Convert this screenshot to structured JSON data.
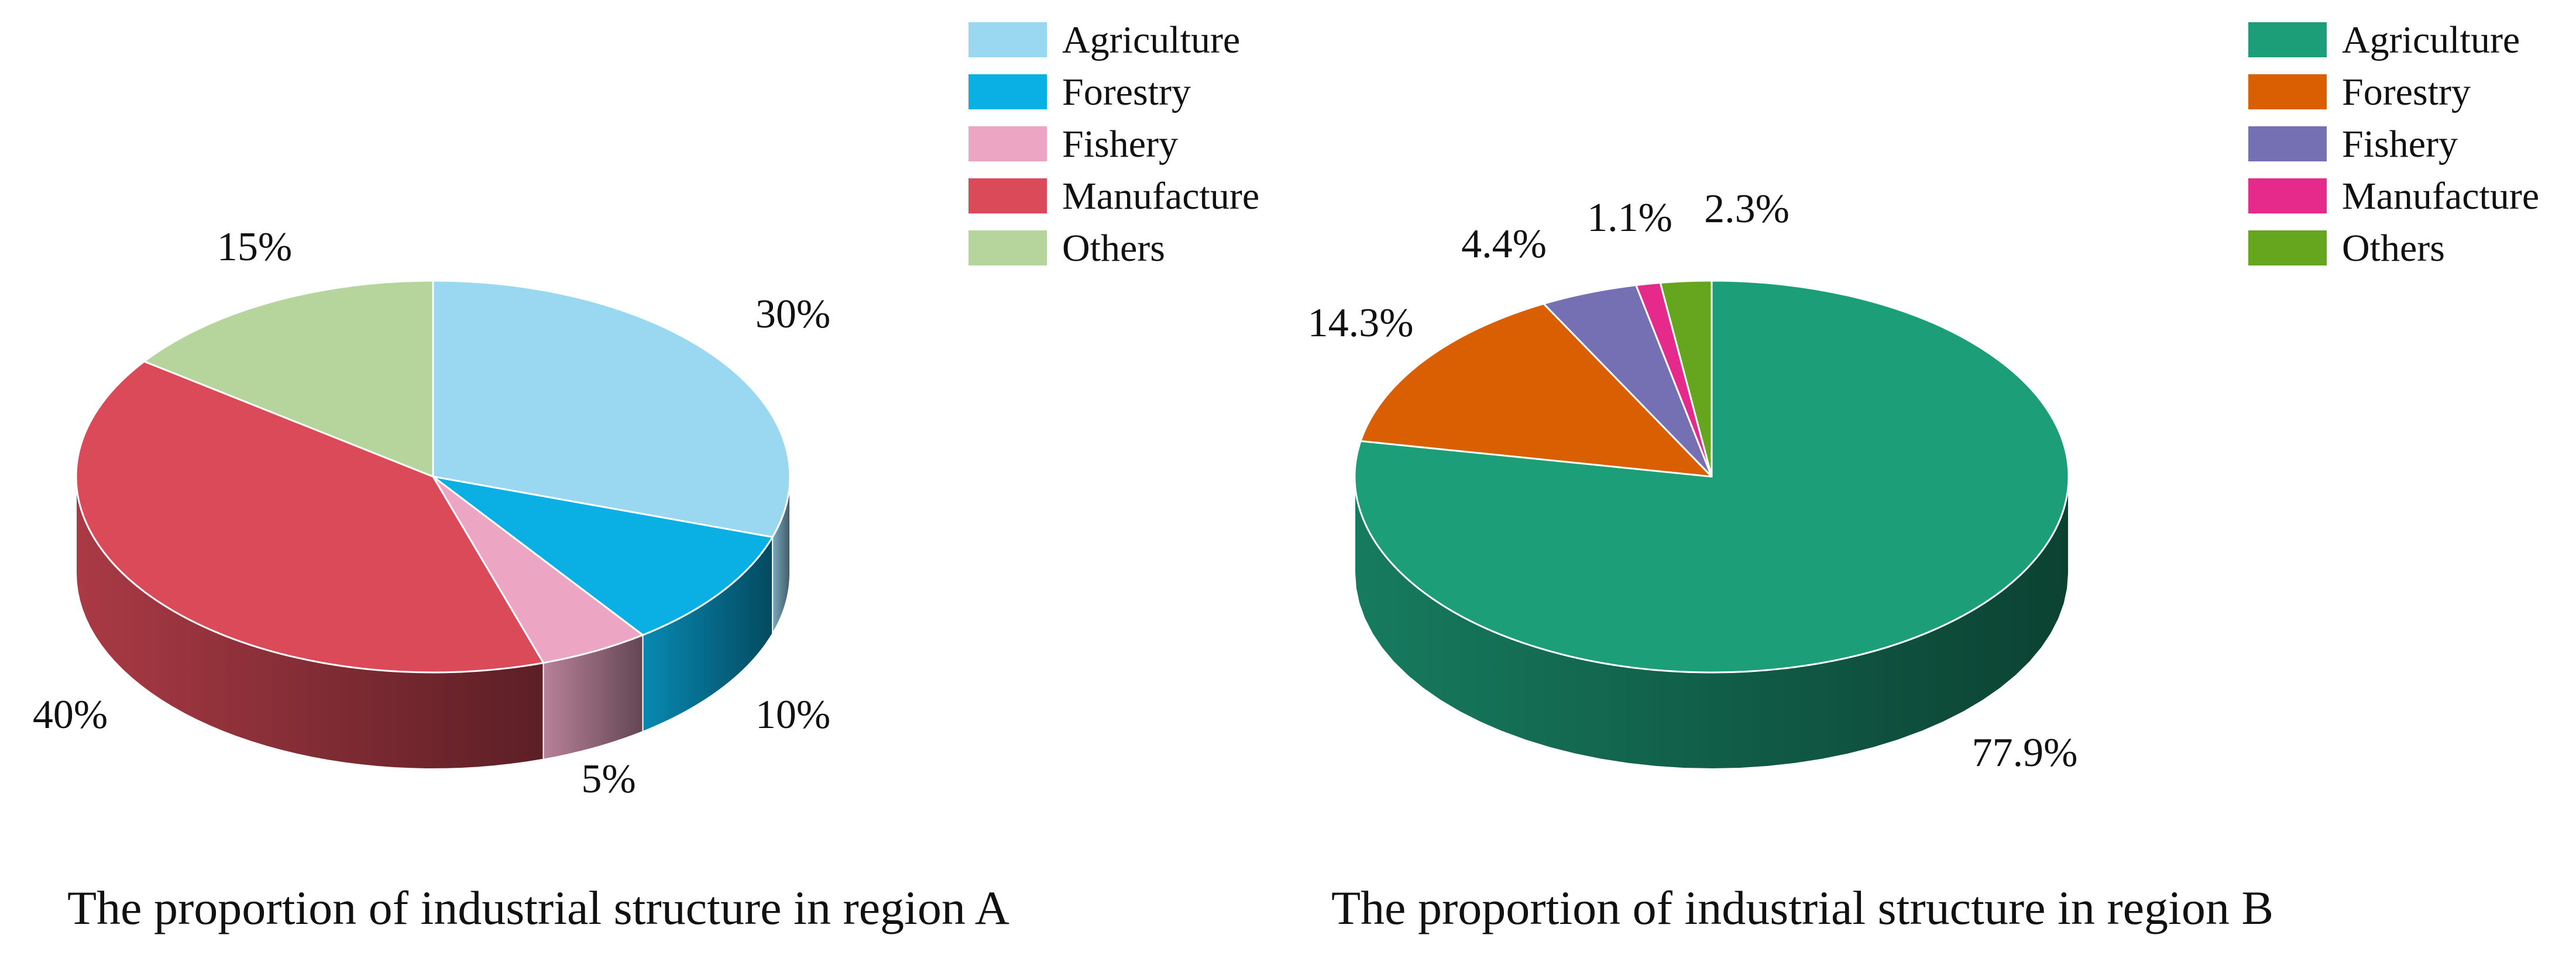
{
  "chart_data": [
    {
      "type": "pie",
      "title": "The proportion of industrial structure in region A",
      "categories": [
        "Agriculture",
        "Forestry",
        "Fishery",
        "Manufacture",
        "Others"
      ],
      "values": [
        30,
        10,
        5,
        40,
        15
      ],
      "value_labels": [
        "30%",
        "10%",
        "5%",
        "40%",
        "15%"
      ],
      "colors": [
        "#9ad8f2",
        "#0aafe4",
        "#eca6c4",
        "#da4a58",
        "#b5d59d"
      ],
      "legend": "top-right",
      "style": "3d"
    },
    {
      "type": "pie",
      "title": "The proportion of industrial structure in region B",
      "categories": [
        "Agriculture",
        "Forestry",
        "Fishery",
        "Manufacture",
        "Others"
      ],
      "values": [
        77.9,
        14.3,
        4.4,
        1.1,
        2.3
      ],
      "value_labels": [
        "77.9%",
        "14.3%",
        "4.4%",
        "1.1%",
        "2.3%"
      ],
      "colors": [
        "#1c9e78",
        "#d95f02",
        "#7570b3",
        "#e52a8b",
        "#66a61e"
      ],
      "legend": "top-right",
      "style": "3d"
    }
  ]
}
